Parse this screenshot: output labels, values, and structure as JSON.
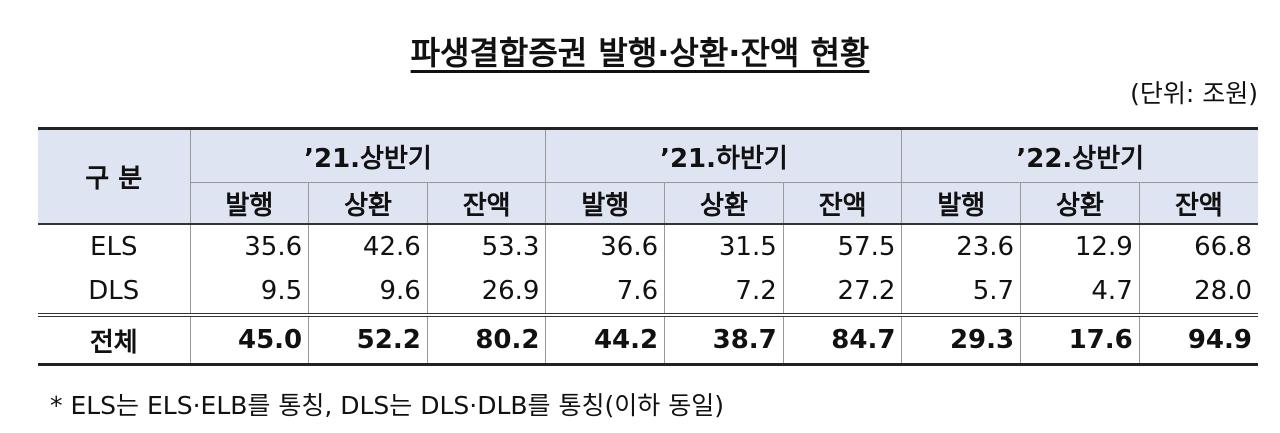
{
  "header": {
    "title": "파생결합증권 발행·상환·잔액 현황",
    "unit": "(단위: 조원)"
  },
  "table": {
    "corner": "구 분",
    "periods": [
      {
        "name": "’21.상반기",
        "columns": [
          "발행",
          "상환",
          "잔액"
        ]
      },
      {
        "name": "’21.하반기",
        "columns": [
          "발행",
          "상환",
          "잔액"
        ]
      },
      {
        "name": "’22.상반기",
        "columns": [
          "발행",
          "상환",
          "잔액"
        ]
      }
    ],
    "rows": [
      {
        "label": "ELS",
        "cells": [
          "35.6",
          "42.6",
          "53.3",
          "36.6",
          "31.5",
          "57.5",
          "23.6",
          "12.9",
          "66.8"
        ]
      },
      {
        "label": "DLS",
        "cells": [
          "9.5",
          "9.6",
          "26.9",
          "7.6",
          "7.2",
          "27.2",
          "5.7",
          "4.7",
          "28.0"
        ]
      },
      {
        "label": "전체",
        "cells": [
          "45.0",
          "52.2",
          "80.2",
          "44.2",
          "38.7",
          "84.7",
          "29.3",
          "17.6",
          "94.9"
        ]
      }
    ]
  },
  "footnote": "* ELS는 ELS·ELB를 통칭, DLS는 DLS·DLB를 통칭(이하 동일)"
}
